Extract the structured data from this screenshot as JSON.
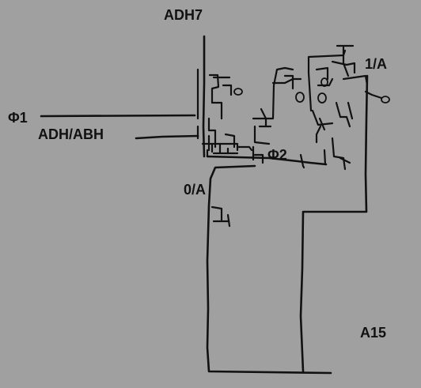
{
  "labels": {
    "adh7": "ADH7",
    "phi1": "Φ1",
    "adh_abh": "ADH/ABH",
    "phi2": "Φ2",
    "zero_a": "0/A",
    "one_a": "1/A",
    "a15": "A15"
  },
  "colors": {
    "background": "#a0a0a0",
    "wire": "#111111"
  }
}
